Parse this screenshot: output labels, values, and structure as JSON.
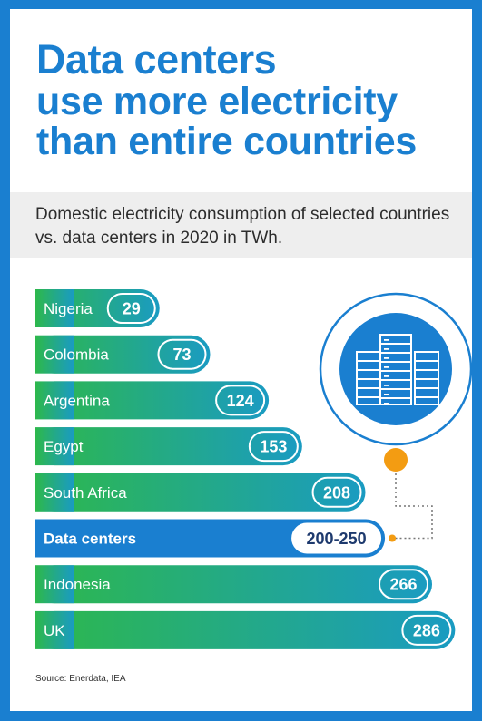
{
  "title": {
    "line1": "Data centers",
    "line2": "use more electricity",
    "line3": "than entire countries"
  },
  "subtitle": "Domestic electricity consumption of selected countries vs. data centers in 2020 in TWh.",
  "source": "Source: Enerdata, IEA",
  "colors": {
    "frame": "#1a7fd0",
    "country_bar_start": "#2db84b",
    "country_bar_end": "#1a9bc2",
    "data_center_bar": "#1a7fd0",
    "connector": "#f39c12",
    "icon_circle": "#1a7fd0"
  },
  "icons": {
    "data_center": "server-racks-icon"
  },
  "chart_data": {
    "type": "bar",
    "orientation": "horizontal",
    "unit": "TWh",
    "categories": [
      "Nigeria",
      "Colombia",
      "Argentina",
      "Egypt",
      "South Africa",
      "Data centers",
      "Indonesia",
      "UK"
    ],
    "values": [
      29,
      73,
      124,
      153,
      208,
      225,
      266,
      286
    ],
    "value_labels": [
      "29",
      "73",
      "124",
      "153",
      "208",
      "200-250",
      "266",
      "286"
    ],
    "highlight": "Data centers",
    "range": {
      "category": "Data centers",
      "min": 200,
      "max": 250
    }
  }
}
